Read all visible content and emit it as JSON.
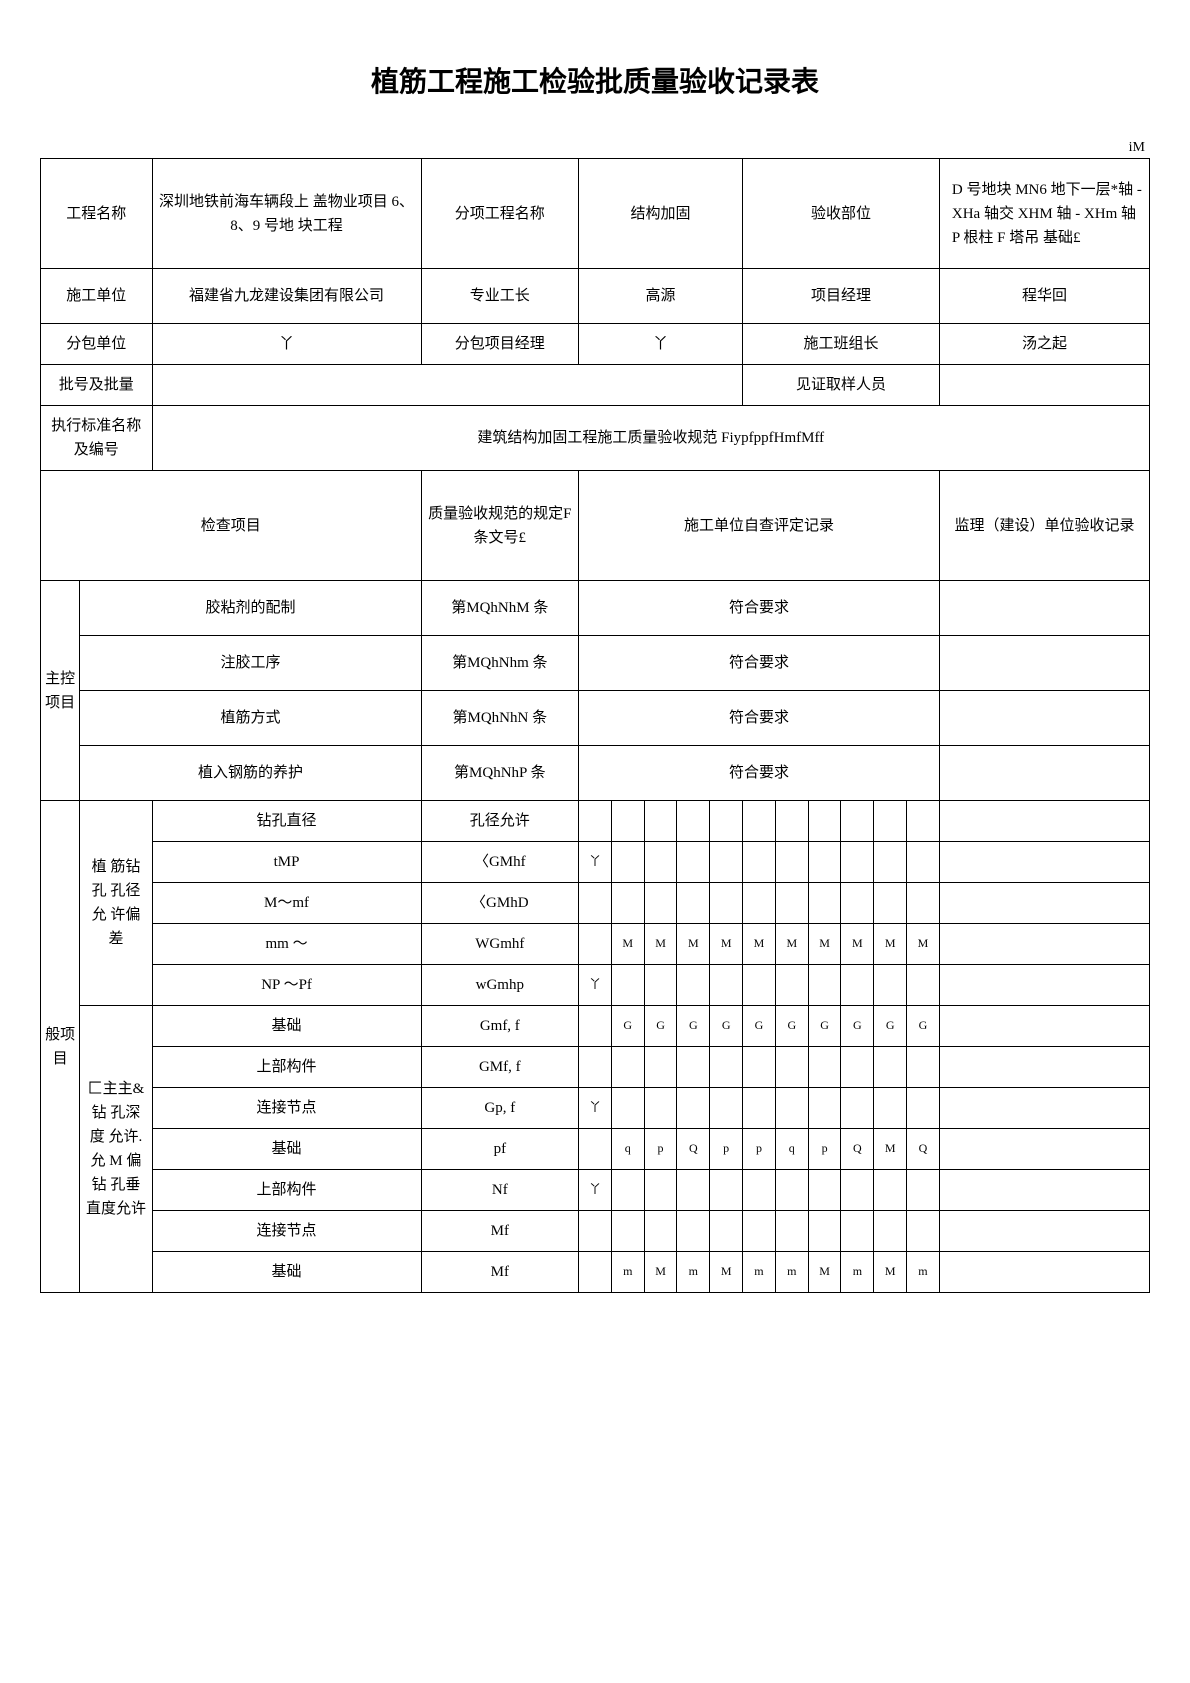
{
  "title": "植筋工程施工检验批质量验收记录表",
  "marker": "iM",
  "header": {
    "project_name_label": "工程名称",
    "project_name": "深圳地铁前海车辆段上 盖物业项目 6、8、9 号地 块工程",
    "sub_project_label": "分项工程名称",
    "sub_project": "结构加固",
    "accept_part_label": "验收部位",
    "accept_part": "D 号地块 MN6 地下一层*轴 - XHa 轴交 XHM 轴 - XHm 轴 P 根柱 F 塔吊 基础£",
    "contractor_label": "施工单位",
    "contractor": "福建省九龙建设集团有限公司",
    "foreman_label": "专业工长",
    "foreman": "高源",
    "pm_label": "项目经理",
    "pm": "程华回",
    "subcontractor_label": "分包单位",
    "subcontractor": "丫",
    "sub_pm_label": "分包项目经理",
    "sub_pm": "丫",
    "team_leader_label": "施工班组长",
    "team_leader": "汤之起",
    "batch_label": "批号及批量",
    "witness_label": "见证取样人员",
    "standard_label": "执行标准名称及编号",
    "standard": "建筑结构加固工程施工质量验收规范 FiypfppfHmfMff",
    "check_item_label": "检查项目",
    "spec_label": "质量验收规范的规定F 条文号£",
    "self_check_label": "施工单位自查评定记录",
    "supervision_label": "监理（建设）单位验收记录"
  },
  "main_group_label": "主控项目",
  "general_group_label": "般项目",
  "main_items": [
    {
      "name": "胶粘剂的配制",
      "spec": "第MQhNhM 条",
      "result": "符合要求"
    },
    {
      "name": "注胶工序",
      "spec": "第MQhNhm 条",
      "result": "符合要求"
    },
    {
      "name": "植筋方式",
      "spec": "第MQhNhN 条",
      "result": "符合要求"
    },
    {
      "name": "植入钢筋的养护",
      "spec": "第MQhNhP 条",
      "result": "符合要求"
    }
  ],
  "general_group1_label": "植 筋钻孔 孔径允 许偏差",
  "general_group2_label": "匚主主&钻 孔深度 允许. 允 M 偏钻 孔垂直度允许",
  "general_rows": [
    {
      "name": "钻孔直径",
      "spec": "孔径允许",
      "tick": "",
      "cells": [
        "",
        "",
        "",
        "",
        "",
        "",
        "",
        "",
        "",
        "",
        ""
      ]
    },
    {
      "name": "tMP",
      "spec": "〈GMhf",
      "tick": "丫",
      "cells": [
        "",
        "",
        "",
        "",
        "",
        "",
        "",
        "",
        "",
        "",
        ""
      ]
    },
    {
      "name": "M〜mf",
      "spec": "〈GMhD",
      "tick": "",
      "cells": [
        "",
        "",
        "",
        "",
        "",
        "",
        "",
        "",
        "",
        "",
        ""
      ]
    },
    {
      "name": "mm 〜",
      "spec": "WGmhf",
      "tick": "",
      "cells": [
        "M",
        "M",
        "M",
        "M",
        "M",
        "M",
        "M",
        "M",
        "M",
        "M",
        ""
      ]
    },
    {
      "name": "NP 〜Pf",
      "spec": "wGmhp",
      "tick": "丫",
      "cells": [
        "",
        "",
        "",
        "",
        "",
        "",
        "",
        "",
        "",
        "",
        ""
      ]
    },
    {
      "name": "基础",
      "spec": "Gmf,  f",
      "tick": "",
      "cells": [
        "G",
        "G",
        "G",
        "G",
        "G",
        "G",
        "G",
        "G",
        "G",
        "G",
        ""
      ]
    },
    {
      "name": "上部构件",
      "spec": "GMf,  f",
      "tick": "",
      "cells": [
        "",
        "",
        "",
        "",
        "",
        "",
        "",
        "",
        "",
        "",
        ""
      ]
    },
    {
      "name": "连接节点",
      "spec": "Gp,  f",
      "tick": "丫",
      "cells": [
        "",
        "",
        "",
        "",
        "",
        "",
        "",
        "",
        "",
        "",
        ""
      ]
    },
    {
      "name": "基础",
      "spec": "pf",
      "tick": "",
      "cells": [
        "q",
        "p",
        "Q",
        "p",
        "p",
        "q",
        "p",
        "Q",
        "M",
        "Q",
        ""
      ]
    },
    {
      "name": "上部构件",
      "spec": "Nf",
      "tick": "丫",
      "cells": [
        "",
        "",
        "",
        "",
        "",
        "",
        "",
        "",
        "",
        "",
        ""
      ]
    },
    {
      "name": "连接节点",
      "spec": "Mf",
      "tick": "",
      "cells": [
        "",
        "",
        "",
        "",
        "",
        "",
        "",
        "",
        "",
        "",
        ""
      ]
    },
    {
      "name": "基础",
      "spec": "Mf",
      "tick": "",
      "cells": [
        "m",
        "M",
        "m",
        "M",
        "m",
        "m",
        "M",
        "m",
        "M",
        "m",
        ""
      ]
    }
  ]
}
